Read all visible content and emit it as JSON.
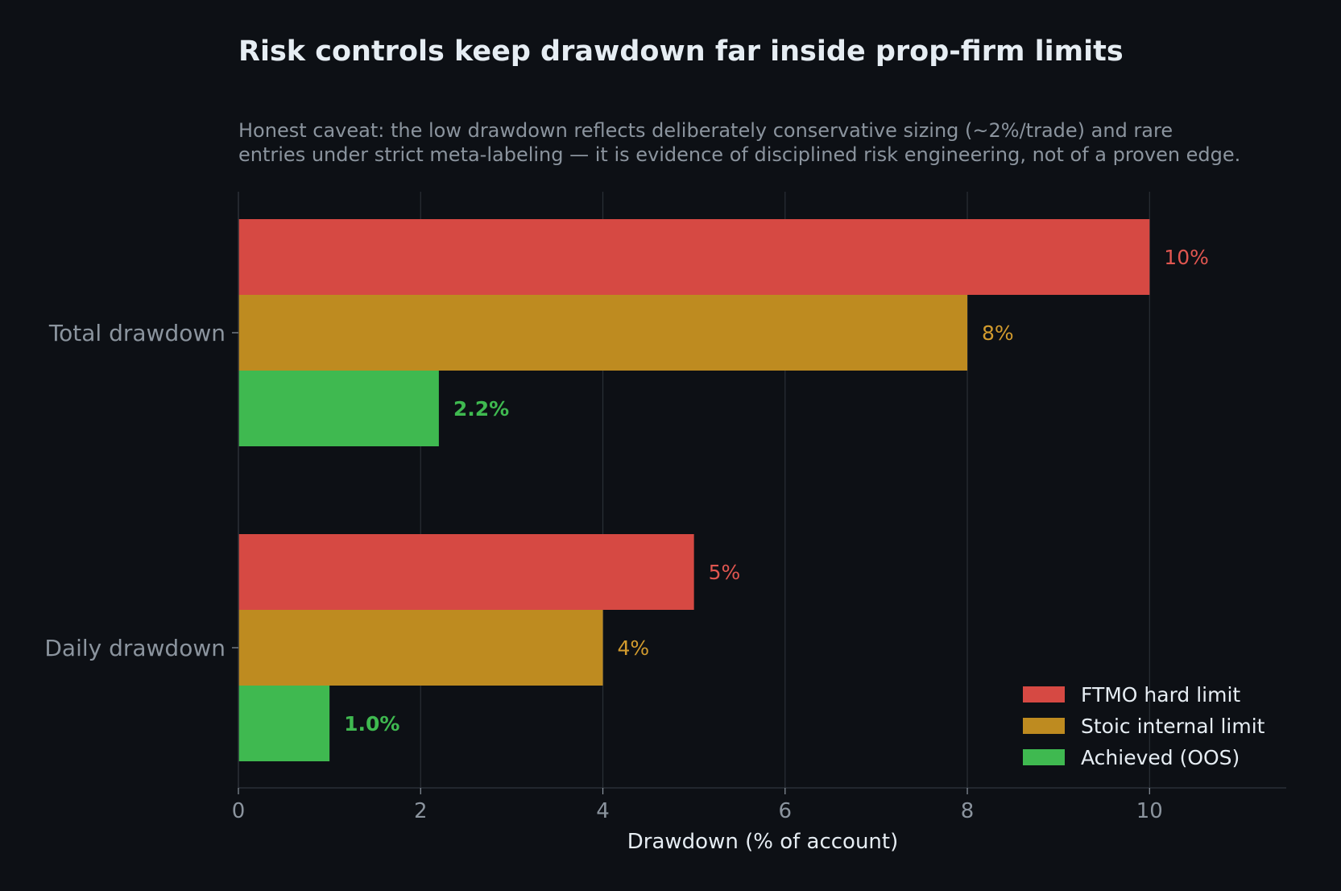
{
  "chart_data": {
    "type": "bar",
    "orientation": "horizontal",
    "title": "Risk controls keep drawdown far inside prop-firm limits",
    "subtitle_lines": [
      "Honest caveat: the low drawdown reflects deliberately conservative sizing (~2%/trade) and rare",
      "entries under strict meta-labeling — it is evidence of disciplined risk engineering, not of a proven edge."
    ],
    "xlabel": "Drawdown (% of account)",
    "ylabel": "",
    "xlim": [
      0,
      11.5
    ],
    "xticks": [
      0,
      2,
      4,
      6,
      8,
      10
    ],
    "grid": "vertical",
    "legend_position": "bottom-right",
    "categories": [
      "Total drawdown",
      "Daily drawdown"
    ],
    "series": [
      {
        "name": "FTMO hard limit",
        "color": "#d64943",
        "label_color": "#e05650",
        "values": [
          10,
          5
        ],
        "labels": [
          "10%",
          "5%"
        ],
        "bold_labels": false
      },
      {
        "name": "Stoic internal limit",
        "color": "#be8b20",
        "label_color": "#d29b2e",
        "values": [
          8,
          4
        ],
        "labels": [
          "8%",
          "4%"
        ],
        "bold_labels": false
      },
      {
        "name": "Achieved (OOS)",
        "color": "#3fb950",
        "label_color": "#3fb950",
        "values": [
          2.2,
          1.0
        ],
        "labels": [
          "2.2%",
          "1.0%"
        ],
        "bold_labels": true
      }
    ]
  },
  "colors": {
    "background": "#0d1015",
    "title": "#e6edf3",
    "subtitle": "#8b949e",
    "tick_label": "#8b949e",
    "axis_label": "#e6edf3",
    "grid": "#2a2f36",
    "legend_text": "#e6edf3"
  }
}
